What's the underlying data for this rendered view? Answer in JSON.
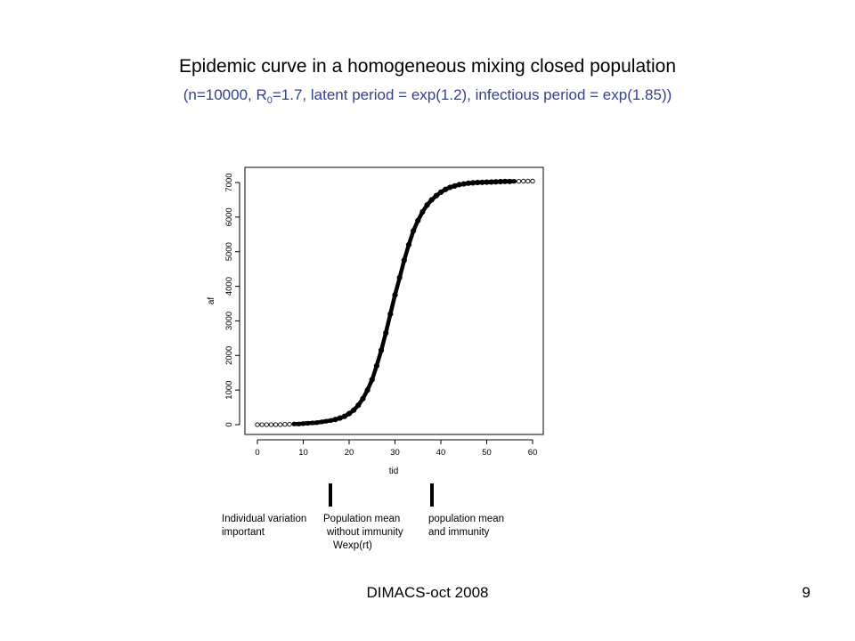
{
  "slide": {
    "title": "Epidemic curve in a homogeneous mixing closed population",
    "subtitle_parts": {
      "before": "(n=10000, R",
      "sub": "0",
      "after": "=1.7, latent period = exp(1.2), infectious period = exp(1.85))"
    },
    "footer": "DIMACS-oct 2008",
    "page_number": "9",
    "subtitle_color": "#33418f"
  },
  "annotations": {
    "col1": [
      "Individual variation",
      "important"
    ],
    "col2": [
      "Population mean",
      "without immunity",
      "Wexp(rt)"
    ],
    "col3": [
      "population mean",
      "and immunity"
    ],
    "markers_at_tid": [
      16,
      38
    ]
  },
  "chart_data": {
    "type": "scatter",
    "title": "",
    "xlabel": "tid",
    "ylabel": "af",
    "xlim": [
      0,
      60
    ],
    "ylim": [
      0,
      7000
    ],
    "xticks": [
      0,
      10,
      20,
      30,
      40,
      50,
      60
    ],
    "yticks": [
      0,
      1000,
      2000,
      3000,
      4000,
      5000,
      6000,
      7000
    ],
    "grid": false,
    "marker": "open-circle",
    "color": "#000000",
    "x": [
      0,
      1,
      2,
      3,
      4,
      5,
      6,
      7,
      8,
      9,
      10,
      11,
      12,
      13,
      14,
      15,
      16,
      17,
      18,
      19,
      20,
      21,
      22,
      23,
      24,
      25,
      26,
      27,
      28,
      29,
      30,
      31,
      32,
      33,
      34,
      35,
      36,
      37,
      38,
      39,
      40,
      41,
      42,
      43,
      44,
      45,
      46,
      47,
      48,
      49,
      50,
      51,
      52,
      53,
      54,
      55,
      56,
      57,
      58,
      59,
      60
    ],
    "y": [
      0,
      0,
      0,
      0,
      0,
      0,
      10,
      10,
      20,
      20,
      30,
      40,
      50,
      60,
      80,
      100,
      120,
      150,
      190,
      240,
      320,
      420,
      560,
      750,
      1000,
      1300,
      1700,
      2150,
      2650,
      3200,
      3750,
      4250,
      4750,
      5200,
      5600,
      5900,
      6150,
      6350,
      6500,
      6620,
      6720,
      6800,
      6860,
      6900,
      6940,
      6960,
      6980,
      6990,
      7000,
      7005,
      7010,
      7015,
      7020,
      7025,
      7030,
      7030,
      7035,
      7035,
      7040,
      7040,
      7040
    ]
  }
}
